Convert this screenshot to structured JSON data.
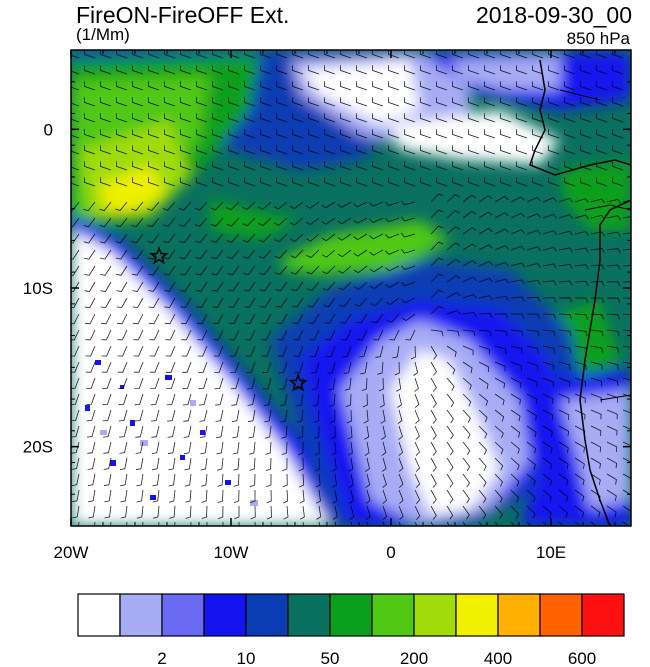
{
  "header": {
    "title": "FireON-FireOFF Ext.",
    "datetime": "2018-09-30_00",
    "units": "(1/Mm)",
    "level": "850 hPa"
  },
  "map": {
    "lon_range": [
      -20,
      15
    ],
    "lat_range": [
      -25,
      5
    ],
    "lon_ticks": [
      {
        "value": -20,
        "label": "20W"
      },
      {
        "value": -10,
        "label": "10W"
      },
      {
        "value": 0,
        "label": "0"
      },
      {
        "value": 10,
        "label": "10E"
      }
    ],
    "lat_ticks": [
      {
        "value": 0,
        "label": "0"
      },
      {
        "value": -10,
        "label": "10S"
      },
      {
        "value": -20,
        "label": "20S"
      }
    ],
    "markers": [
      {
        "name": "star",
        "lon": -14.5,
        "lat": -8.0
      },
      {
        "name": "star",
        "lon": -5.8,
        "lat": -16.0
      }
    ],
    "overlay": "wind barbs"
  },
  "colorbar": {
    "colors": [
      "#ffffff",
      "#a8acf5",
      "#6a6af2",
      "#1414f0",
      "#0a3cb4",
      "#0a7060",
      "#0aa01e",
      "#50c814",
      "#a0dc0a",
      "#f0f000",
      "#ffb000",
      "#ff6000",
      "#ff1010"
    ],
    "labels": [
      {
        "after_box": 1,
        "text": "2"
      },
      {
        "after_box": 3,
        "text": "10"
      },
      {
        "after_box": 5,
        "text": "50"
      },
      {
        "after_box": 7,
        "text": "200"
      },
      {
        "after_box": 9,
        "text": "400"
      },
      {
        "after_box": 11,
        "text": "600"
      }
    ]
  }
}
